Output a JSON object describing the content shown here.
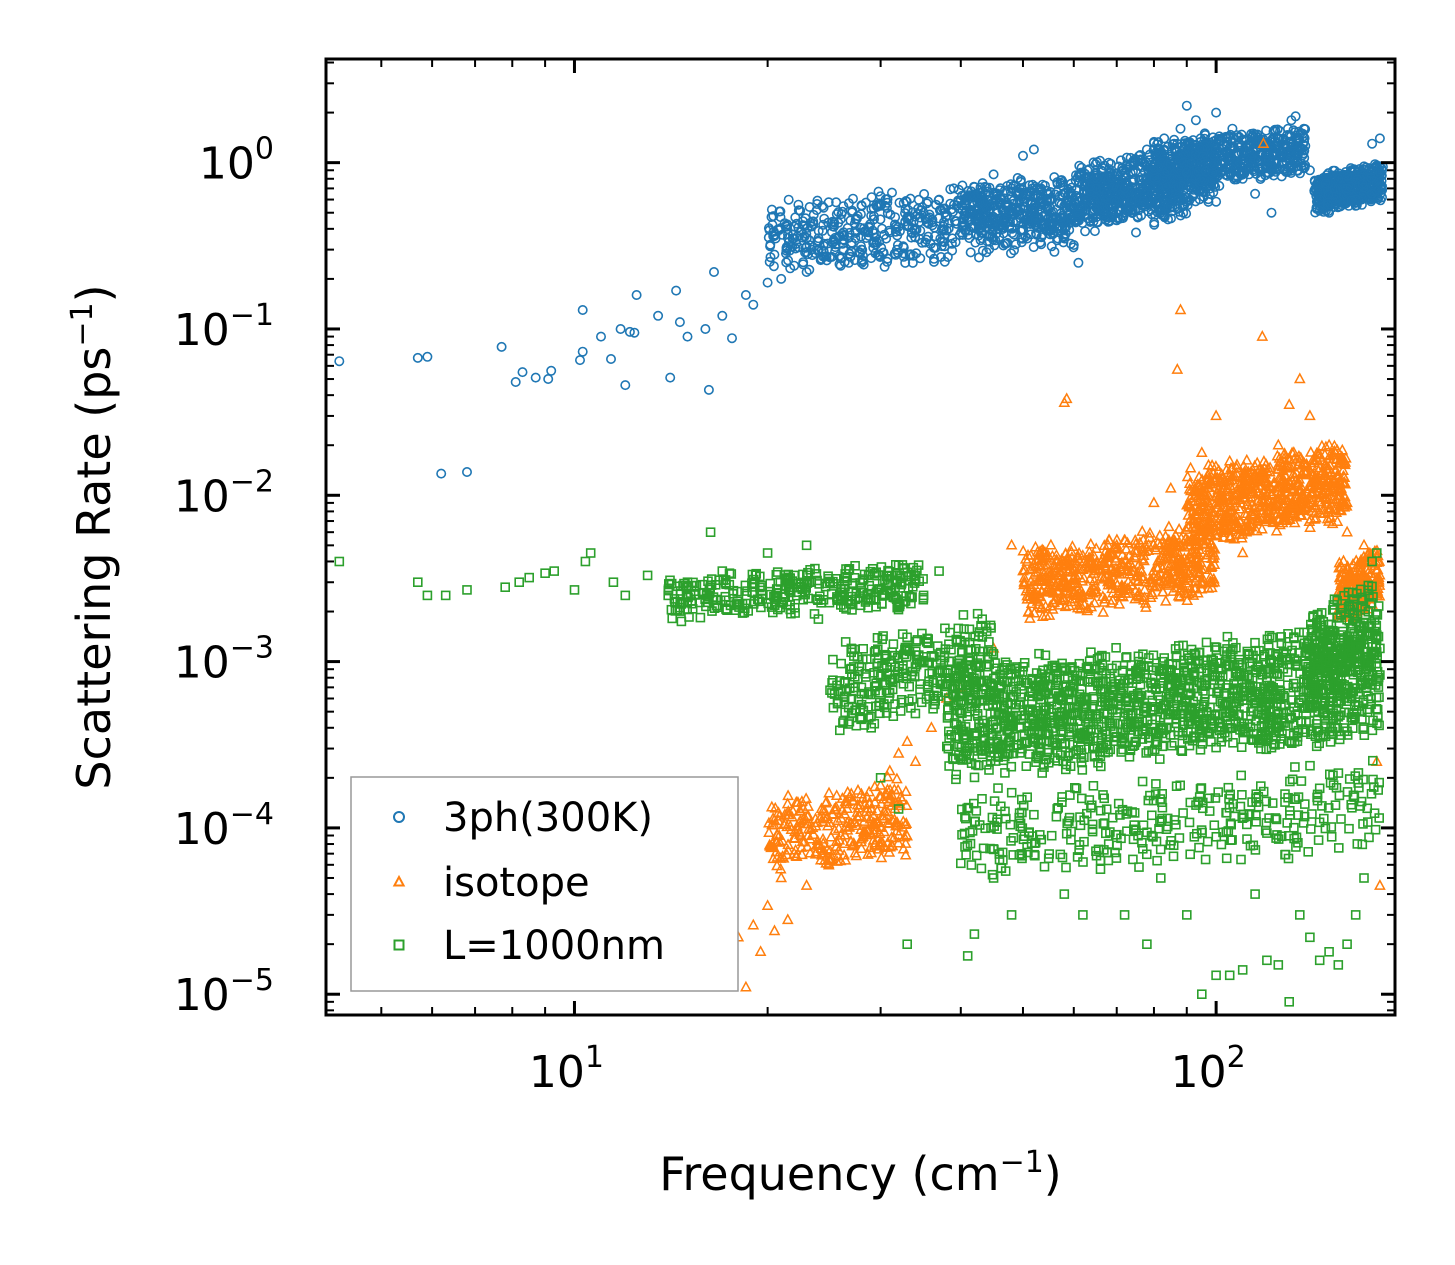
{
  "chart_data": {
    "type": "scatter",
    "xscale": "log",
    "yscale": "log",
    "xlim": [
      4.1,
      190
    ],
    "ylim": [
      7.5e-06,
      4.2
    ],
    "xlabel": "Frequency (cm",
    "xlabel_sup": "−1",
    "xlabel_tail": ")",
    "ylabel": "Scattering Rate (ps",
    "ylabel_sup": "−1",
    "ylabel_tail": ")",
    "x_ticks": [
      {
        "base": "10",
        "exp": "1",
        "value": 10
      },
      {
        "base": "10",
        "exp": "2",
        "value": 100
      }
    ],
    "y_ticks": [
      {
        "base": "10",
        "exp": "0",
        "value": 1
      },
      {
        "base": "10",
        "exp": "−1",
        "value": 0.1
      },
      {
        "base": "10",
        "exp": "−2",
        "value": 0.01
      },
      {
        "base": "10",
        "exp": "−3",
        "value": 0.001
      },
      {
        "base": "10",
        "exp": "−4",
        "value": 0.0001
      },
      {
        "base": "10",
        "exp": "−5",
        "value": 1e-05
      }
    ],
    "legend_position": "lower-left",
    "series": [
      {
        "name": "3ph(300K)",
        "marker": "circle",
        "color": "#1f77b4",
        "points": [
          [
            4.3,
            0.064
          ],
          [
            5.7,
            0.067
          ],
          [
            5.9,
            0.068
          ],
          [
            6.2,
            0.0135
          ],
          [
            6.8,
            0.0138
          ],
          [
            7.7,
            0.078
          ],
          [
            8.1,
            0.048
          ],
          [
            8.3,
            0.055
          ],
          [
            8.7,
            0.051
          ],
          [
            9.1,
            0.05
          ],
          [
            9.2,
            0.056
          ],
          [
            10.2,
            0.065
          ],
          [
            10.3,
            0.073
          ],
          [
            10.3,
            0.13
          ],
          [
            11.0,
            0.09
          ],
          [
            11.4,
            0.066
          ],
          [
            11.8,
            0.1
          ],
          [
            12.0,
            0.046
          ],
          [
            12.2,
            0.096
          ],
          [
            12.4,
            0.095
          ],
          [
            12.5,
            0.16
          ],
          [
            13.5,
            0.12
          ],
          [
            14.1,
            0.051
          ],
          [
            14.4,
            0.17
          ],
          [
            14.6,
            0.11
          ],
          [
            15.0,
            0.09
          ],
          [
            16.0,
            0.1
          ],
          [
            16.2,
            0.043
          ],
          [
            16.5,
            0.22
          ],
          [
            17.0,
            0.12
          ],
          [
            17.6,
            0.088
          ],
          [
            18.5,
            0.16
          ],
          [
            19.0,
            0.14
          ],
          [
            20.0,
            0.19
          ],
          [
            21.0,
            0.2
          ],
          [
            22.0,
            0.24
          ],
          [
            23.0,
            0.22
          ],
          [
            24.0,
            0.3
          ],
          [
            25.0,
            0.27
          ],
          [
            26.0,
            0.24
          ],
          [
            27.0,
            0.32
          ],
          [
            28.0,
            0.3
          ],
          [
            29.0,
            0.48
          ],
          [
            30.0,
            0.55
          ],
          [
            31.0,
            0.38
          ],
          [
            33.0,
            0.42
          ],
          [
            35.0,
            0.5
          ],
          [
            37.0,
            0.6
          ],
          [
            39.0,
            0.7
          ],
          [
            42.0,
            0.52
          ],
          [
            45.0,
            0.85
          ],
          [
            48.0,
            0.7
          ],
          [
            50.0,
            1.1
          ],
          [
            52.0,
            1.2
          ],
          [
            55.0,
            0.6
          ],
          [
            58.0,
            0.55
          ],
          [
            60.0,
            0.32
          ],
          [
            61.0,
            0.25
          ],
          [
            63.0,
            0.9
          ],
          [
            65.0,
            0.7
          ],
          [
            68.0,
            1.0
          ],
          [
            70.0,
            0.45
          ],
          [
            72.0,
            0.7
          ],
          [
            75.0,
            0.38
          ],
          [
            78.0,
            1.2
          ],
          [
            80.0,
            0.9
          ],
          [
            83.0,
            1.4
          ],
          [
            86.0,
            1.3
          ],
          [
            88.0,
            1.6
          ],
          [
            90.0,
            2.2
          ],
          [
            93.0,
            1.8
          ],
          [
            96.0,
            1.5
          ],
          [
            100.0,
            2.0
          ],
          [
            103.0,
            1.1
          ],
          [
            106.0,
            1.6
          ],
          [
            110.0,
            0.8
          ],
          [
            115.0,
            0.65
          ],
          [
            118.0,
            1.3
          ],
          [
            122.0,
            0.5
          ],
          [
            125.0,
            1.2
          ],
          [
            128.0,
            0.9
          ],
          [
            131.0,
            1.8
          ],
          [
            133.0,
            1.9
          ],
          [
            137.0,
            1.6
          ],
          [
            140.0,
            0.9
          ],
          [
            145.0,
            0.6
          ],
          [
            150.0,
            0.5
          ],
          [
            155.0,
            0.8
          ],
          [
            160.0,
            0.7
          ],
          [
            165.0,
            0.55
          ],
          [
            170.0,
            0.95
          ],
          [
            175.0,
            1.3
          ],
          [
            180.0,
            1.4
          ]
        ],
        "bands": [
          {
            "x": [
              20,
              60
            ],
            "y": [
              0.18,
              0.95
            ],
            "n": 600
          },
          {
            "x": [
              40,
              90
            ],
            "y": [
              0.3,
              1.1
            ],
            "n": 500
          },
          {
            "x": [
              60,
              100
            ],
            "y": [
              0.35,
              1.6
            ],
            "n": 500
          },
          {
            "x": [
              80,
              138
            ],
            "y": [
              0.6,
              1.9
            ],
            "n": 600
          },
          {
            "x": [
              142,
              182
            ],
            "y": [
              0.45,
              1.1
            ],
            "n": 450
          }
        ]
      },
      {
        "name": "isotope",
        "marker": "triangle",
        "color": "#ff7f0e",
        "points": [
          [
            15.8,
            1.1e-05
          ],
          [
            16.4,
            1.2e-05
          ],
          [
            17.0,
            1.3e-05
          ],
          [
            17.6,
            1.6e-05
          ],
          [
            18.0,
            2.2e-05
          ],
          [
            18.5,
            1.1e-05
          ],
          [
            19.0,
            2.6e-05
          ],
          [
            19.5,
            1.8e-05
          ],
          [
            20.0,
            3.4e-05
          ],
          [
            20.5,
            2.4e-05
          ],
          [
            21.0,
            5e-05
          ],
          [
            21.5,
            2.8e-05
          ],
          [
            22.0,
            7e-05
          ],
          [
            23.0,
            4.5e-05
          ],
          [
            23.5,
            0.0001
          ],
          [
            24.0,
            8e-05
          ],
          [
            25.0,
            6.5e-05
          ],
          [
            26.0,
            9e-05
          ],
          [
            27.0,
            0.00016
          ],
          [
            28.0,
            7.5e-05
          ],
          [
            29.0,
            0.00013
          ],
          [
            30.0,
            0.00018
          ],
          [
            31.0,
            0.00022
          ],
          [
            32.0,
            0.00028
          ],
          [
            33.0,
            0.00033
          ],
          [
            34.0,
            0.00025
          ],
          [
            36.0,
            0.0004
          ],
          [
            38.0,
            0.0006
          ],
          [
            40.0,
            0.0007
          ],
          [
            45.0,
            0.0012
          ],
          [
            48.0,
            0.005
          ],
          [
            50.0,
            0.0035
          ],
          [
            52.0,
            0.0025
          ],
          [
            55.0,
            0.0028
          ],
          [
            58.0,
            0.036
          ],
          [
            58.5,
            0.038
          ],
          [
            60.0,
            0.0032
          ],
          [
            65.0,
            0.0035
          ],
          [
            70.0,
            0.005
          ],
          [
            75.0,
            0.0045
          ],
          [
            80.0,
            0.009
          ],
          [
            85.0,
            0.011
          ],
          [
            87.0,
            0.057
          ],
          [
            88.0,
            0.13
          ],
          [
            95.0,
            0.018
          ],
          [
            100.0,
            0.03
          ],
          [
            105.0,
            0.016
          ],
          [
            110.0,
            0.0045
          ],
          [
            118.0,
            0.09
          ],
          [
            118.5,
            1.3
          ],
          [
            120.0,
            0.009
          ],
          [
            125.0,
            0.02
          ],
          [
            130.0,
            0.035
          ],
          [
            135.0,
            0.05
          ],
          [
            140.0,
            0.03
          ],
          [
            145.0,
            0.012
          ],
          [
            150.0,
            0.02
          ],
          [
            160.0,
            0.006
          ],
          [
            165.0,
            0.003
          ],
          [
            170.0,
            0.005
          ],
          [
            175.0,
            0.0022
          ],
          [
            178.0,
            0.00025
          ],
          [
            180.0,
            4.5e-05
          ]
        ],
        "bands": [
          {
            "x": [
              20,
              33
            ],
            "y": [
              4e-05,
              0.00025
            ],
            "n": 300
          },
          {
            "x": [
              50,
              100
            ],
            "y": [
              0.0015,
              0.008
            ],
            "n": 600
          },
          {
            "x": [
              90,
              160
            ],
            "y": [
              0.004,
              0.025
            ],
            "n": 700
          },
          {
            "x": [
              155,
              180
            ],
            "y": [
              0.0015,
              0.006
            ],
            "n": 200
          }
        ]
      },
      {
        "name": "L=1000nm",
        "marker": "square",
        "color": "#2ca02c",
        "points": [
          [
            4.3,
            0.004
          ],
          [
            5.7,
            0.003
          ],
          [
            5.9,
            0.0025
          ],
          [
            6.3,
            0.0025
          ],
          [
            6.8,
            0.0027
          ],
          [
            7.8,
            0.0028
          ],
          [
            8.2,
            0.003
          ],
          [
            8.5,
            0.0032
          ],
          [
            9.0,
            0.0034
          ],
          [
            9.3,
            0.0035
          ],
          [
            10.0,
            0.0027
          ],
          [
            10.4,
            0.004
          ],
          [
            10.6,
            0.0045
          ],
          [
            11.5,
            0.003
          ],
          [
            12.0,
            0.0025
          ],
          [
            13.0,
            0.0033
          ],
          [
            14.0,
            0.0025
          ],
          [
            15.0,
            0.003
          ],
          [
            16.3,
            0.006
          ],
          [
            17.0,
            0.0035
          ],
          [
            18.0,
            0.0022
          ],
          [
            20.0,
            0.0045
          ],
          [
            22.0,
            0.0033
          ],
          [
            23.0,
            0.005
          ],
          [
            24.0,
            0.0018
          ],
          [
            26.0,
            0.0025
          ],
          [
            27.0,
            0.0012
          ],
          [
            28.0,
            0.0007
          ],
          [
            29.0,
            0.0004
          ],
          [
            30.0,
            0.0002
          ],
          [
            32.0,
            0.00013
          ],
          [
            33.0,
            2e-05
          ],
          [
            35.0,
            0.0025
          ],
          [
            37.0,
            0.0035
          ],
          [
            40.0,
            0.0008
          ],
          [
            41.0,
            1.7e-05
          ],
          [
            42.0,
            2.3e-05
          ],
          [
            45.0,
            5e-05
          ],
          [
            47.0,
            5.5e-05
          ],
          [
            48.0,
            3e-05
          ],
          [
            52.0,
            0.00012
          ],
          [
            58.0,
            4e-05
          ],
          [
            62.0,
            3e-05
          ],
          [
            68.0,
            8e-05
          ],
          [
            72.0,
            3e-05
          ],
          [
            78.0,
            2e-05
          ],
          [
            82.0,
            5e-05
          ],
          [
            90.0,
            3e-05
          ],
          [
            95.0,
            1e-05
          ],
          [
            100.0,
            1.3e-05
          ],
          [
            105.0,
            1.3e-05
          ],
          [
            110.0,
            1.4e-05
          ],
          [
            115.0,
            4e-05
          ],
          [
            120.0,
            1.6e-05
          ],
          [
            125.0,
            1.5e-05
          ],
          [
            130.0,
            9e-06
          ],
          [
            135.0,
            3e-05
          ],
          [
            140.0,
            2.2e-05
          ],
          [
            145.0,
            1.6e-05
          ],
          [
            150.0,
            1.8e-05
          ],
          [
            155.0,
            1.5e-05
          ],
          [
            160.0,
            2e-05
          ],
          [
            165.0,
            3e-05
          ],
          [
            170.0,
            5e-05
          ],
          [
            175.0,
            0.004
          ],
          [
            178.0,
            0.0045
          ],
          [
            180.0,
            0.0012
          ]
        ],
        "bands": [
          {
            "x": [
              14,
              35
            ],
            "y": [
              0.0015,
              0.0045
            ],
            "n": 350
          },
          {
            "x": [
              25,
              45
            ],
            "y": [
              0.0003,
              0.0025
            ],
            "n": 300
          },
          {
            "x": [
              38,
              180
            ],
            "y": [
              0.00015,
              0.0022
            ],
            "n": 1600
          },
          {
            "x": [
              40,
              180
            ],
            "y": [
              4e-05,
              0.0003
            ],
            "n": 350
          },
          {
            "x": [
              140,
              180
            ],
            "y": [
              0.0004,
              0.004
            ],
            "n": 250
          }
        ]
      }
    ]
  },
  "legend": {
    "items": [
      {
        "label": "3ph(300K)",
        "marker": "circle",
        "color": "#1f77b4"
      },
      {
        "label": "isotope",
        "marker": "triangle",
        "color": "#ff7f0e"
      },
      {
        "label": "L=1000nm",
        "marker": "square",
        "color": "#2ca02c"
      }
    ]
  }
}
